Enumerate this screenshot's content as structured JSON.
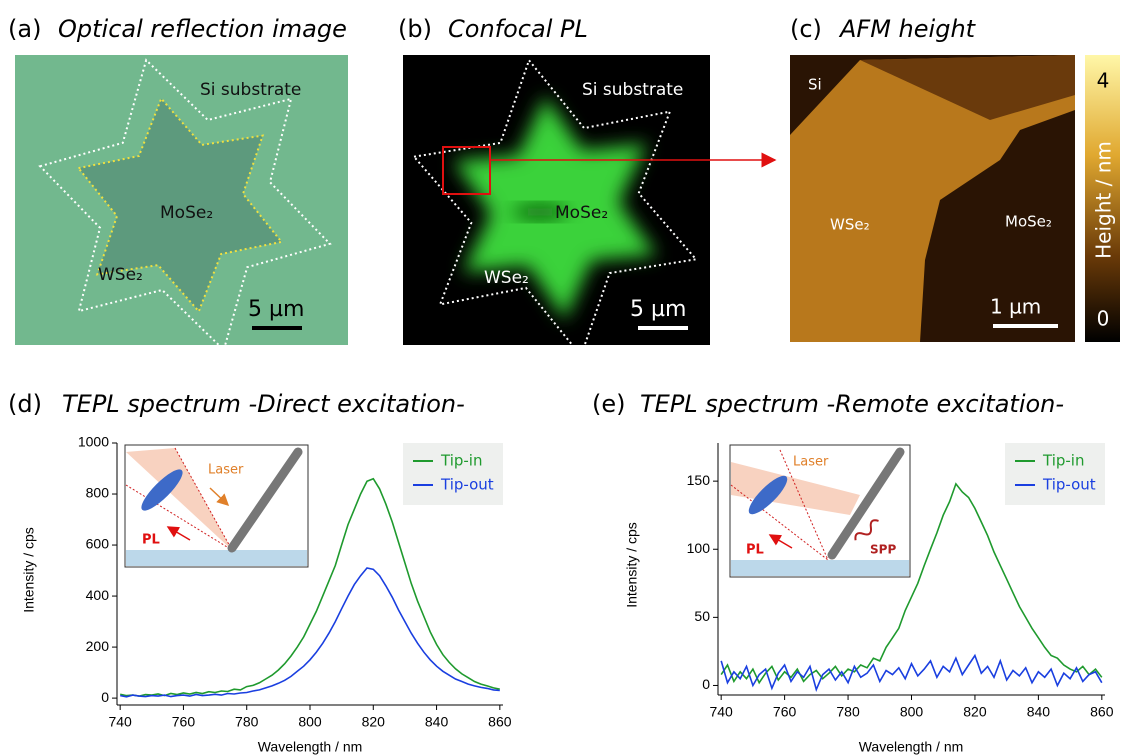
{
  "panels": [
    {
      "label": "(a)",
      "title": "Optical reflection image",
      "texts": [
        "Si substrate",
        "MoSe₂",
        "WSe₂",
        "5 µm"
      ]
    },
    {
      "label": "(b)",
      "title": "Confocal PL",
      "texts": [
        "Si substrate",
        "MoSe₂",
        "WSe₂",
        "5 µm"
      ]
    },
    {
      "label": "(c)",
      "title": "AFM height",
      "texts": [
        "Si",
        "WSe₂",
        "MoSe₂",
        "1 µm"
      ],
      "colorbar": {
        "max": "4",
        "min": "0",
        "label": "Height / nm"
      }
    }
  ],
  "chart_data": [
    {
      "type": "line",
      "panel": "(d)",
      "title": "TEPL spectrum -Direct excitation-",
      "x_label": "Wavelength / nm",
      "y_label": "Intensity / cps",
      "inset_labels": [
        "Laser",
        "PL"
      ],
      "xlim": [
        739,
        861
      ],
      "ylim": [
        -27,
        1000
      ],
      "xticks": [
        740,
        760,
        780,
        800,
        820,
        840,
        860
      ],
      "yticks": [
        0,
        200,
        400,
        600,
        800,
        1000
      ],
      "x": [
        740,
        742,
        744,
        746,
        748,
        750,
        752,
        754,
        756,
        758,
        760,
        762,
        764,
        766,
        768,
        770,
        772,
        774,
        776,
        778,
        780,
        782,
        784,
        786,
        788,
        790,
        792,
        794,
        796,
        798,
        800,
        802,
        804,
        806,
        808,
        810,
        812,
        814,
        816,
        818,
        820,
        822,
        824,
        826,
        828,
        830,
        832,
        834,
        836,
        838,
        840,
        842,
        844,
        846,
        848,
        850,
        852,
        854,
        856,
        858,
        860
      ],
      "series": [
        {
          "name": "Tip-in",
          "color": "#1f9a2e",
          "values": [
            15,
            10,
            12,
            8,
            14,
            12,
            16,
            10,
            18,
            14,
            20,
            16,
            22,
            18,
            25,
            22,
            28,
            26,
            35,
            32,
            45,
            50,
            60,
            75,
            90,
            110,
            135,
            165,
            200,
            240,
            290,
            340,
            400,
            460,
            520,
            600,
            680,
            740,
            800,
            850,
            860,
            820,
            760,
            690,
            610,
            530,
            450,
            380,
            320,
            260,
            210,
            170,
            140,
            115,
            95,
            80,
            65,
            55,
            48,
            40,
            35
          ]
        },
        {
          "name": "Tip-out",
          "color": "#1a3fe0",
          "values": [
            10,
            5,
            12,
            8,
            6,
            10,
            8,
            12,
            6,
            10,
            12,
            8,
            14,
            10,
            12,
            15,
            12,
            18,
            16,
            20,
            22,
            28,
            32,
            40,
            48,
            58,
            70,
            85,
            105,
            125,
            150,
            180,
            215,
            255,
            300,
            350,
            400,
            445,
            480,
            510,
            505,
            480,
            440,
            395,
            345,
            300,
            255,
            215,
            180,
            150,
            125,
            105,
            90,
            75,
            65,
            55,
            48,
            42,
            38,
            32,
            30
          ]
        }
      ]
    },
    {
      "type": "line",
      "panel": "(e)",
      "title": "TEPL spectrum -Remote excitation-",
      "x_label": "Wavelength / nm",
      "y_label": "Intensity / cps",
      "inset_labels": [
        "Laser",
        "PL",
        "SPP"
      ],
      "xlim": [
        739,
        861
      ],
      "ylim": [
        -7,
        178
      ],
      "xticks": [
        740,
        760,
        780,
        800,
        820,
        840,
        860
      ],
      "yticks": [
        0,
        50,
        100,
        150
      ],
      "x": [
        740,
        742,
        744,
        746,
        748,
        750,
        752,
        754,
        756,
        758,
        760,
        762,
        764,
        766,
        768,
        770,
        772,
        774,
        776,
        778,
        780,
        782,
        784,
        786,
        788,
        790,
        792,
        794,
        796,
        798,
        800,
        802,
        804,
        806,
        808,
        810,
        812,
        814,
        816,
        818,
        820,
        822,
        824,
        826,
        828,
        830,
        832,
        834,
        836,
        838,
        840,
        842,
        844,
        846,
        848,
        850,
        852,
        854,
        856,
        858,
        860
      ],
      "series": [
        {
          "name": "Tip-in",
          "color": "#1f9a2e",
          "values": [
            8,
            15,
            3,
            10,
            5,
            12,
            2,
            9,
            14,
            4,
            10,
            6,
            12,
            3,
            8,
            11,
            5,
            9,
            14,
            7,
            12,
            10,
            15,
            13,
            20,
            18,
            28,
            35,
            42,
            55,
            65,
            75,
            88,
            100,
            112,
            125,
            135,
            148,
            142,
            138,
            130,
            120,
            110,
            98,
            88,
            78,
            68,
            58,
            50,
            42,
            35,
            28,
            22,
            20,
            15,
            12,
            10,
            14,
            8,
            12,
            6
          ]
        },
        {
          "name": "Tip-out",
          "color": "#1a3fe0",
          "values": [
            18,
            2,
            10,
            5,
            14,
            0,
            8,
            12,
            -2,
            9,
            15,
            3,
            10,
            6,
            14,
            -3,
            8,
            12,
            4,
            10,
            2,
            14,
            6,
            9,
            15,
            3,
            11,
            8,
            13,
            5,
            16,
            7,
            12,
            18,
            6,
            14,
            10,
            20,
            8,
            15,
            22,
            9,
            14,
            6,
            18,
            4,
            11,
            7,
            13,
            2,
            10,
            6,
            12,
            0,
            9,
            5,
            13,
            3,
            8,
            10,
            2
          ]
        }
      ]
    }
  ]
}
